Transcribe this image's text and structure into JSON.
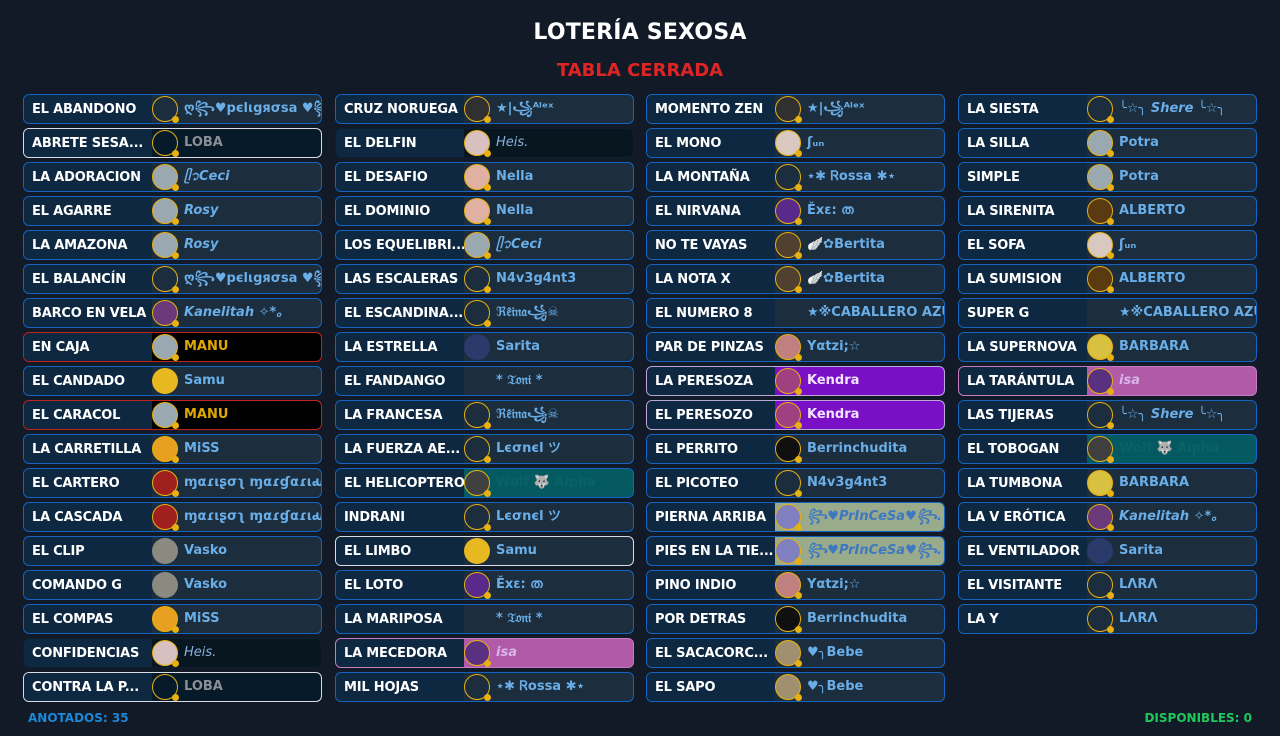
{
  "header": {
    "title": "LOTERÍA SEXOSA",
    "status": "TABLA CERRADA"
  },
  "footer": {
    "anotados": "ANOTADOS: 35",
    "disponibles": "DISPONIBLES: 0"
  },
  "colors": {
    "accent": "#1565c0",
    "status": "#e02424",
    "avatar_ring": "#e8b010",
    "anotados": "#1e88d8",
    "disponibles": "#1ec85a"
  },
  "columns": [
    [
      {
        "card": "EL ABANDONO",
        "user": "ღ꧂♥pєlιgяσsa ♥꧂ღ",
        "avatar": "#1c2d3d"
      },
      {
        "card": "ABRETE SESA...",
        "user": "LOBA",
        "theme": "loba",
        "avatar": "#061a2a"
      },
      {
        "card": "LA ADORACION",
        "user": "ᥫ᭡Ceci",
        "theme": "italic",
        "avatar": "#9aa8b0"
      },
      {
        "card": "EL AGARRE",
        "user": "Rosy",
        "theme": "italic",
        "avatar": "#9aa8b0"
      },
      {
        "card": "LA AMAZONA",
        "user": "Rosy",
        "theme": "italic",
        "avatar": "#9aa8b0"
      },
      {
        "card": "EL BALANCÍN",
        "user": "ღ꧂♥pєlιgяσsa ♥꧂ღ",
        "avatar": "#1c2d3d"
      },
      {
        "card": "BARCO EN VELA",
        "user": "Kanelitah ✧*。",
        "theme": "italic",
        "avatar": "#6a3a7a"
      },
      {
        "card": "EN CAJA",
        "user": "MANU",
        "theme": "manu",
        "avatar": "#9aa8b0"
      },
      {
        "card": "EL CANDADO",
        "user": "Samu",
        "avatar": "#e8b820",
        "noring": true
      },
      {
        "card": "EL CARACOL",
        "user": "MANU",
        "theme": "manu",
        "avatar": "#9aa8b0"
      },
      {
        "card": "LA CARRETILLA",
        "user": "MiSS",
        "avatar": "#e8a020"
      },
      {
        "card": "EL CARTERO",
        "user": "ɱαɾιʂσʅ ɱαɾɠαɾιԃα",
        "avatar": "#a02020"
      },
      {
        "card": "LA CASCADA",
        "user": "ɱαɾιʂσʅ ɱαɾɠαɾιԃα",
        "avatar": "#a02020"
      },
      {
        "card": "EL CLIP",
        "user": "Vasko",
        "avatar": "#8a8a80",
        "noring": true
      },
      {
        "card": "COMANDO G",
        "user": "Vasko",
        "avatar": "#8a8a80",
        "noring": true
      },
      {
        "card": "EL COMPAS",
        "user": "MiSS",
        "avatar": "#e8a020"
      },
      {
        "card": "CONFIDENCIAS",
        "user": "Heis.",
        "theme": "heis",
        "avatar": "#d8c0c0"
      },
      {
        "card": "CONTRA LA P...",
        "user": "LOBA",
        "theme": "loba",
        "avatar": "#061a2a"
      }
    ],
    [
      {
        "card": "CRUZ NORUEGA",
        "user": "★|꧁ᴬˡᵉˣ",
        "avatar": "#303030"
      },
      {
        "card": "EL DELFIN",
        "user": "Heis.",
        "theme": "heis",
        "avatar": "#d8c0c0"
      },
      {
        "card": "EL DESAFIO",
        "user": "Nella",
        "avatar": "#e0b0a0"
      },
      {
        "card": "EL DOMINIO",
        "user": "Nella",
        "avatar": "#e0b0a0"
      },
      {
        "card": "LOS EQUELIBRI...",
        "user": "ᥫ᭡Ceci",
        "theme": "italic",
        "avatar": "#9aa8b0"
      },
      {
        "card": "LAS ESCALERAS",
        "user": "N4v3g4nt3",
        "avatar": "#1c2d3d"
      },
      {
        "card": "EL ESCANDINA...",
        "user": "ℜ𝔢̂𝔦𝔫𝔞꧁☠",
        "avatar": "#1c2d3d"
      },
      {
        "card": "LA ESTRELLA",
        "user": "Sarita",
        "avatar": "#2a3a6a",
        "noring": true
      },
      {
        "card": "EL FANDANGO",
        "user": "* 𝔗𝔬𝔫𝔦 *",
        "avatar": "#1c2d3d",
        "noring": true
      },
      {
        "card": "LA FRANCESA",
        "user": "ℜ𝔢̂𝔦𝔫𝔞꧁☠",
        "avatar": "#1c2d3d"
      },
      {
        "card": "LA FUERZA AE...",
        "user": "Lєσnєl  ツ",
        "avatar": "#1c2d3d"
      },
      {
        "card": "EL HELICOPTERO",
        "user": "Wolf 🐺 Alpha",
        "theme": "teal",
        "avatar": "#404040"
      },
      {
        "card": "INDRANI",
        "user": "Lєσnєl  ツ",
        "avatar": "#1c2d3d"
      },
      {
        "card": "EL LIMBO",
        "user": "Samu",
        "theme": "white",
        "avatar": "#e8b820",
        "noring": true
      },
      {
        "card": "EL LOTO",
        "user": "Ěxε: ത",
        "avatar": "#5a2a8a"
      },
      {
        "card": "LA MARIPOSA",
        "user": "* 𝔗𝔬𝔫𝔦 *",
        "avatar": "#1c2d3d",
        "noring": true
      },
      {
        "card": "LA MECEDORA",
        "user": "isa",
        "theme": "pink",
        "avatar": "#5a3080"
      },
      {
        "card": "MIL HOJAS",
        "user": "⋆✱ Ꮢossa ✱⋆",
        "avatar": "#1c2d3d"
      }
    ],
    [
      {
        "card": "MOMENTO ZEN",
        "user": "★|꧁ᴬˡᵉˣ",
        "avatar": "#303030"
      },
      {
        "card": "EL MONO",
        "user": "ʃᵤₙ",
        "avatar": "#d8c8c0"
      },
      {
        "card": "LA MONTAÑA",
        "user": "⋆✱ Ꮢossa ✱⋆",
        "avatar": "#1c2d3d"
      },
      {
        "card": "EL NIRVANA",
        "user": "Ěxε: ത",
        "avatar": "#5a2a8a"
      },
      {
        "card": "NO TE VAYAS",
        "user": "🪽✿Bertita",
        "avatar": "#504030"
      },
      {
        "card": "LA NOTA X",
        "user": "🪽✿Bertita",
        "avatar": "#504030"
      },
      {
        "card": "EL NUMERO 8",
        "user": "★※CABALLERO AZUL",
        "avatar": "#1c2d3d",
        "noring": true
      },
      {
        "card": "PAR DE PINZAS",
        "user": "Yαtzi;☆",
        "avatar": "#c08080"
      },
      {
        "card": "LA PERESOZA",
        "user": "Kendra",
        "theme": "purple",
        "avatar": "#a04080"
      },
      {
        "card": "EL PERESOZO",
        "user": "Kendra",
        "theme": "purple",
        "avatar": "#a04080"
      },
      {
        "card": "EL PERRITO",
        "user": "Berrinchudita",
        "avatar": "#101010"
      },
      {
        "card": "EL PICOTEO",
        "user": "N4v3g4nt3",
        "avatar": "#1c2d3d"
      },
      {
        "card": "PIERNA ARRIBA",
        "user": "꧂♥PrInCeSa♥꧂.",
        "theme": "sage",
        "avatar": "#8080c0"
      },
      {
        "card": "PIES EN LA TIE...",
        "user": "꧂♥PrInCeSa♥꧂.",
        "theme": "sage",
        "avatar": "#8080c0"
      },
      {
        "card": "PINO INDIO",
        "user": "Yαtzi;☆",
        "avatar": "#c08080"
      },
      {
        "card": "POR DETRAS",
        "user": "Berrinchudita",
        "avatar": "#101010"
      },
      {
        "card": "EL SACACORC...",
        "user": "♥╮Bebe",
        "avatar": "#a09070"
      },
      {
        "card": "EL SAPO",
        "user": "♥╮Bebe",
        "avatar": "#a09070"
      }
    ],
    [
      {
        "card": "LA SIESTA",
        "user": "╰☆╮ Shere ╰☆╮",
        "theme": "italic",
        "avatar": "#1c2d3d"
      },
      {
        "card": "LA SILLA",
        "user": "Potra",
        "avatar": "#9aa8b0"
      },
      {
        "card": "SIMPLE",
        "user": "Potra",
        "avatar": "#9aa8b0"
      },
      {
        "card": "LA SIRENITA",
        "user": "ALBERTO",
        "avatar": "#5a3a10"
      },
      {
        "card": "EL SOFA",
        "user": "ʃᵤₙ",
        "avatar": "#d8c8c0"
      },
      {
        "card": "LA SUMISION",
        "user": "ALBERTO",
        "avatar": "#5a3a10"
      },
      {
        "card": "SUPER G",
        "user": "★※CABALLERO AZUL",
        "avatar": "#1c2d3d",
        "noring": true
      },
      {
        "card": "LA SUPERNOVA",
        "user": "BARBARA",
        "avatar": "#d8c040"
      },
      {
        "card": "LA TARÁNTULA",
        "user": "isa",
        "theme": "pink",
        "avatar": "#5a3080"
      },
      {
        "card": "LAS TIJERAS",
        "user": "╰☆╮ Shere ╰☆╮",
        "theme": "italic",
        "avatar": "#1c2d3d"
      },
      {
        "card": "EL TOBOGAN",
        "user": "Wolf 🐺 Alpha",
        "theme": "teal",
        "avatar": "#404040"
      },
      {
        "card": "LA TUMBONA",
        "user": "BARBARA",
        "avatar": "#d8c040"
      },
      {
        "card": "LA V ERÓTICA",
        "user": "Kanelitah ✧*。",
        "theme": "italic",
        "avatar": "#6a3a7a"
      },
      {
        "card": "EL VENTILADOR",
        "user": "Sarita",
        "avatar": "#2a3a6a",
        "noring": true
      },
      {
        "card": "EL VISITANTE",
        "user": "LΛRΛ",
        "avatar": "#1c2d3d"
      },
      {
        "card": "LA Y",
        "user": "LΛRΛ",
        "avatar": "#1c2d3d"
      }
    ]
  ]
}
